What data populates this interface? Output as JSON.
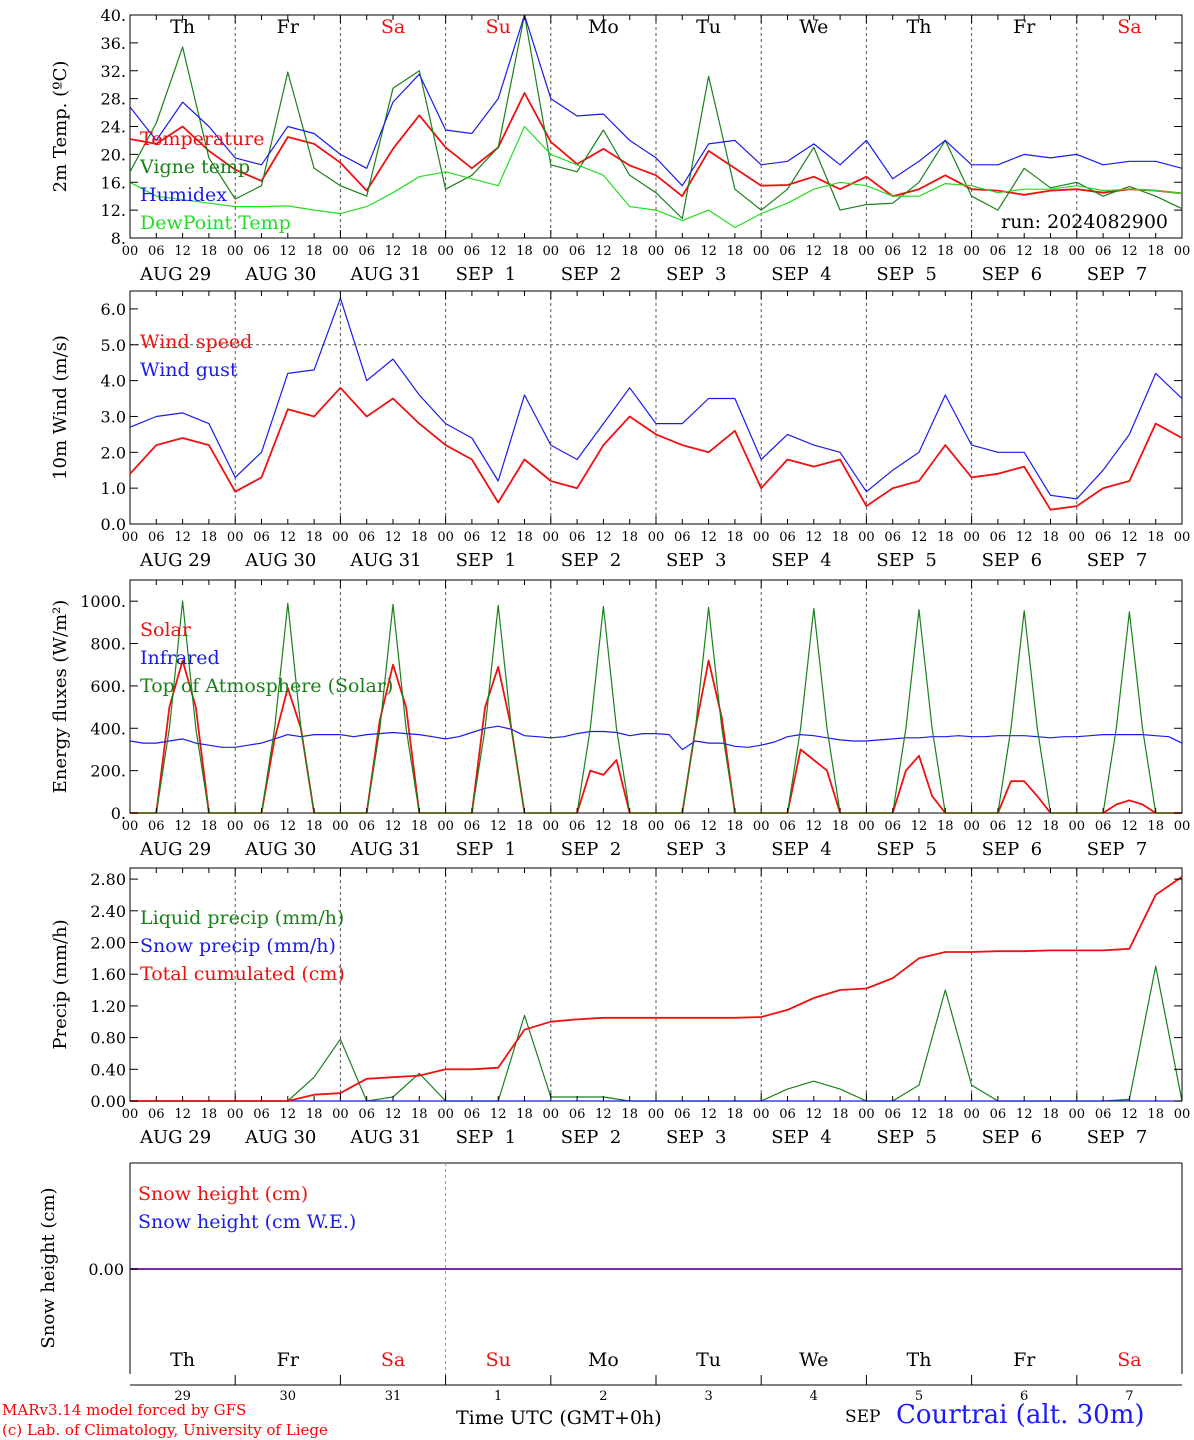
{
  "footer": {
    "model_credit": "MARv3.14 model forced by GFS",
    "lab_credit": "(c) Lab. of Climatology, University of Liege",
    "x_axis_title": "Time UTC (GMT+0h)",
    "month_label": "SEP",
    "station_label": "Courtrai (alt. 30m)"
  },
  "colors": {
    "red": "#ee1111",
    "green": "#1a801a",
    "blue": "#1a1aee",
    "lightgreen": "#22dd22",
    "purple": "#7a2a9a"
  },
  "chart_data": [
    {
      "type": "line",
      "id": "temp",
      "ylabel": "2m Temp. (ºC)",
      "ylim": [
        8,
        40
      ],
      "yticks": [
        8,
        12,
        16,
        20,
        24,
        28,
        32,
        36,
        40
      ],
      "ytick_labels": [
        "8.",
        "12.",
        "16.",
        "20.",
        "24.",
        "28.",
        "32.",
        "36.",
        "40."
      ],
      "weekday_labels": [
        "Th",
        "Fr",
        "Sa",
        "Su",
        "Mo",
        "Tu",
        "We",
        "Th",
        "Fr",
        "Sa"
      ],
      "run_label": "run: 2024082900",
      "x_hours": [
        0,
        6,
        12,
        18,
        24,
        30,
        36,
        42,
        48,
        54,
        60,
        66,
        72,
        78,
        84,
        90,
        96,
        102,
        108,
        114,
        120,
        126,
        132,
        138,
        144,
        150,
        156,
        162,
        168,
        174,
        180,
        186,
        192,
        198,
        204,
        210,
        216,
        222,
        228,
        234,
        240
      ],
      "series": [
        {
          "name": "Temperature",
          "color": "red",
          "values": [
            22.2,
            21.5,
            24.0,
            20.5,
            17.8,
            16.2,
            22.5,
            21.5,
            18.8,
            14.8,
            20.8,
            25.6,
            21.0,
            18.0,
            21.0,
            28.8,
            21.8,
            18.6,
            20.8,
            18.4,
            17.0,
            14.0,
            20.5,
            18.0,
            15.5,
            15.6,
            16.8,
            15.0,
            16.8,
            14.0,
            15.0,
            17.0,
            15.0,
            14.8,
            14.2,
            14.8,
            15.0,
            14.5,
            15.0,
            14.8,
            14.4
          ]
        },
        {
          "name": "Vigne temp",
          "color": "green",
          "values": [
            17.5,
            24.5,
            35.4,
            19.5,
            13.6,
            15.5,
            31.8,
            18.0,
            15.5,
            14.0,
            29.5,
            32.0,
            15.0,
            17.0,
            21.0,
            40.0,
            18.5,
            17.5,
            23.5,
            17.0,
            14.5,
            10.8,
            31.2,
            15.0,
            12.0,
            15.0,
            21.0,
            12.0,
            12.8,
            13.0,
            16.0,
            22.0,
            14.0,
            12.0,
            18.0,
            15.2,
            16.0,
            14.0,
            15.4,
            14.0,
            12.2
          ]
        },
        {
          "name": "Humidex",
          "color": "blue",
          "values": [
            26.8,
            22.0,
            27.5,
            24.0,
            19.5,
            18.5,
            24.0,
            23.0,
            20.0,
            18.0,
            27.5,
            31.5,
            23.5,
            23.0,
            28.0,
            40.0,
            28.0,
            25.5,
            25.8,
            22.0,
            19.5,
            15.5,
            21.5,
            22.0,
            18.5,
            19.0,
            21.5,
            18.5,
            22.0,
            16.5,
            19.0,
            22.0,
            18.5,
            18.5,
            20.0,
            19.5,
            20.0,
            18.5,
            19.0,
            19.0,
            18.0
          ]
        },
        {
          "name": "DewPoint Temp",
          "color": "lightgreen",
          "values": [
            16.0,
            14.0,
            13.5,
            13.0,
            12.5,
            12.5,
            12.6,
            12.0,
            11.5,
            12.5,
            14.5,
            16.8,
            17.5,
            16.5,
            15.5,
            24.0,
            20.0,
            18.5,
            17.0,
            12.5,
            12.0,
            10.5,
            12.0,
            9.5,
            11.5,
            13.0,
            15.0,
            16.0,
            15.5,
            14.0,
            14.0,
            15.8,
            15.5,
            14.5,
            15.0,
            15.0,
            15.5,
            14.8,
            15.0,
            14.8,
            14.4
          ]
        }
      ]
    },
    {
      "type": "line",
      "id": "wind",
      "ylabel": "10m Wind (m/s)",
      "ylim": [
        0,
        6.5
      ],
      "yticks": [
        0,
        1,
        2,
        3,
        4,
        5,
        6
      ],
      "ytick_labels": [
        "0.0",
        "1.0",
        "2.0",
        "3.0",
        "4.0",
        "5.0",
        "6.0"
      ],
      "reference_line": 5.0,
      "x_hours": [
        0,
        6,
        12,
        18,
        24,
        30,
        36,
        42,
        48,
        54,
        60,
        66,
        72,
        78,
        84,
        90,
        96,
        102,
        108,
        114,
        120,
        126,
        132,
        138,
        144,
        150,
        156,
        162,
        168,
        174,
        180,
        186,
        192,
        198,
        204,
        210,
        216,
        222,
        228,
        234,
        240
      ],
      "series": [
        {
          "name": "Wind speed",
          "color": "red",
          "values": [
            1.4,
            2.2,
            2.4,
            2.2,
            0.9,
            1.3,
            3.2,
            3.0,
            3.8,
            3.0,
            3.5,
            2.8,
            2.2,
            1.8,
            0.6,
            1.8,
            1.2,
            1.0,
            2.2,
            3.0,
            2.5,
            2.2,
            2.0,
            2.6,
            1.0,
            1.8,
            1.6,
            1.8,
            0.5,
            1.0,
            1.2,
            2.2,
            1.3,
            1.4,
            1.6,
            0.4,
            0.5,
            1.0,
            1.2,
            2.8,
            2.4
          ]
        },
        {
          "name": "Wind gust",
          "color": "blue",
          "values": [
            2.7,
            3.0,
            3.1,
            2.8,
            1.3,
            2.0,
            4.2,
            4.3,
            6.3,
            4.0,
            4.6,
            3.6,
            2.8,
            2.4,
            1.2,
            3.6,
            2.2,
            1.8,
            2.8,
            3.8,
            2.8,
            2.8,
            3.5,
            3.5,
            1.8,
            2.5,
            2.2,
            2.0,
            0.9,
            1.5,
            2.0,
            3.6,
            2.2,
            2.0,
            2.0,
            0.8,
            0.7,
            1.5,
            2.5,
            4.2,
            3.5
          ]
        }
      ]
    },
    {
      "type": "line",
      "id": "energy",
      "ylabel": "Energy fluxes (W/m²)",
      "ylim": [
        0,
        1100
      ],
      "yticks": [
        0,
        200,
        400,
        600,
        800,
        1000
      ],
      "ytick_labels": [
        "0.",
        "200.",
        "400.",
        "600.",
        "800.",
        "1000."
      ],
      "x_hours": [
        0,
        3,
        6,
        9,
        12,
        15,
        18,
        21,
        24,
        27,
        30,
        33,
        36,
        39,
        42,
        45,
        48,
        51,
        54,
        57,
        60,
        63,
        66,
        69,
        72,
        75,
        78,
        81,
        84,
        87,
        90,
        93,
        96,
        99,
        102,
        105,
        108,
        111,
        114,
        117,
        120,
        123,
        126,
        129,
        132,
        135,
        138,
        141,
        144,
        147,
        150,
        153,
        156,
        159,
        162,
        165,
        168,
        171,
        174,
        177,
        180,
        183,
        186,
        189,
        192,
        195,
        198,
        201,
        204,
        207,
        210,
        213,
        216,
        219,
        222,
        225,
        228,
        231,
        234,
        237,
        240
      ],
      "series": [
        {
          "name": "Solar",
          "color": "red",
          "values": [
            0,
            0,
            0,
            500,
            720,
            500,
            0,
            0,
            0,
            0,
            0,
            350,
            590,
            400,
            0,
            0,
            0,
            0,
            0,
            440,
            700,
            500,
            0,
            0,
            0,
            0,
            0,
            500,
            690,
            400,
            0,
            0,
            0,
            0,
            0,
            200,
            180,
            250,
            0,
            0,
            0,
            0,
            0,
            400,
            720,
            450,
            0,
            0,
            0,
            0,
            0,
            300,
            250,
            200,
            0,
            0,
            0,
            0,
            0,
            200,
            270,
            80,
            0,
            0,
            0,
            0,
            0,
            150,
            150,
            80,
            0,
            0,
            0,
            0,
            0,
            40,
            60,
            40,
            0,
            0,
            0
          ]
        },
        {
          "name": "Infrared",
          "color": "blue",
          "values": [
            340,
            330,
            330,
            340,
            350,
            330,
            320,
            310,
            310,
            320,
            330,
            350,
            370,
            360,
            370,
            370,
            370,
            360,
            370,
            375,
            380,
            375,
            370,
            360,
            350,
            360,
            380,
            400,
            410,
            395,
            365,
            360,
            355,
            360,
            375,
            385,
            385,
            380,
            365,
            375,
            375,
            370,
            300,
            340,
            330,
            330,
            315,
            310,
            320,
            335,
            360,
            370,
            365,
            355,
            345,
            340,
            340,
            345,
            350,
            355,
            355,
            360,
            360,
            365,
            360,
            360,
            365,
            365,
            365,
            360,
            355,
            360,
            360,
            365,
            370,
            370,
            370,
            370,
            365,
            360,
            330
          ]
        },
        {
          "name": "Top of Atmosphere (Solar)",
          "color": "green",
          "values": [
            0,
            0,
            0,
            400,
            1000,
            400,
            0,
            0,
            0,
            0,
            0,
            400,
            990,
            400,
            0,
            0,
            0,
            0,
            0,
            400,
            985,
            400,
            0,
            0,
            0,
            0,
            0,
            400,
            980,
            400,
            0,
            0,
            0,
            0,
            0,
            400,
            975,
            400,
            0,
            0,
            0,
            0,
            0,
            400,
            970,
            400,
            0,
            0,
            0,
            0,
            0,
            400,
            965,
            400,
            0,
            0,
            0,
            0,
            0,
            400,
            960,
            400,
            0,
            0,
            0,
            0,
            0,
            400,
            955,
            400,
            0,
            0,
            0,
            0,
            0,
            400,
            950,
            400,
            0,
            0,
            0
          ]
        }
      ]
    },
    {
      "type": "line",
      "id": "precip",
      "ylabel": "Precip (mm/h)",
      "ylim": [
        0,
        2.94
      ],
      "yticks": [
        0,
        0.4,
        0.8,
        1.2,
        1.6,
        2.0,
        2.4,
        2.8
      ],
      "ytick_labels": [
        "0.00",
        "0.40",
        "0.80",
        "1.20",
        "1.60",
        "2.00",
        "2.40",
        "2.80"
      ],
      "x_hours": [
        0,
        6,
        12,
        18,
        24,
        30,
        36,
        42,
        48,
        54,
        60,
        66,
        72,
        78,
        84,
        90,
        96,
        102,
        108,
        114,
        120,
        126,
        132,
        138,
        144,
        150,
        156,
        162,
        168,
        174,
        180,
        186,
        192,
        198,
        204,
        210,
        216,
        222,
        228,
        234,
        240
      ],
      "series": [
        {
          "name": "Liquid precip (mm/h)",
          "color": "green",
          "values": [
            0,
            0,
            0,
            0,
            0,
            0,
            0,
            0.3,
            0.78,
            0,
            0.05,
            0.35,
            0,
            0,
            0,
            1.08,
            0.05,
            0.05,
            0.05,
            0,
            0,
            0,
            0,
            0,
            0,
            0.15,
            0.25,
            0.15,
            0,
            0,
            0.2,
            1.4,
            0.2,
            0,
            0,
            0,
            0,
            0,
            0.02,
            1.7,
            0
          ]
        },
        {
          "name": "Snow precip (mm/h)",
          "color": "blue",
          "values": [
            0,
            0,
            0,
            0,
            0,
            0,
            0,
            0,
            0,
            0,
            0,
            0,
            0,
            0,
            0,
            0,
            0,
            0,
            0,
            0,
            0,
            0,
            0,
            0,
            0,
            0,
            0,
            0,
            0,
            0,
            0,
            0,
            0,
            0,
            0,
            0,
            0,
            0,
            0,
            0,
            0
          ]
        },
        {
          "name": "Total cumulated (cm)",
          "color": "red",
          "values": [
            0,
            0,
            0,
            0,
            0,
            0,
            0,
            0.08,
            0.1,
            0.28,
            0.3,
            0.32,
            0.4,
            0.4,
            0.42,
            0.9,
            1.0,
            1.03,
            1.05,
            1.05,
            1.05,
            1.05,
            1.05,
            1.05,
            1.06,
            1.15,
            1.3,
            1.4,
            1.42,
            1.55,
            1.8,
            1.88,
            1.88,
            1.89,
            1.89,
            1.9,
            1.9,
            1.9,
            1.92,
            2.6,
            2.83
          ]
        }
      ]
    },
    {
      "type": "line",
      "id": "snow",
      "ylabel": "Snow height (cm)",
      "ytick_labels": [
        "0.00"
      ],
      "weekday_labels": [
        "Th",
        "Fr",
        "Sa",
        "Su",
        "Mo",
        "Tu",
        "We",
        "Th",
        "Fr",
        "Sa"
      ],
      "day_numbers": [
        "29",
        "30",
        "31",
        "1",
        "2",
        "3",
        "4",
        "5",
        "6",
        "7"
      ],
      "x_hours": [
        0,
        240
      ],
      "series": [
        {
          "name": "Snow height (cm)",
          "color": "red",
          "values": [
            0,
            0
          ]
        },
        {
          "name": "Snow height (cm W.E.)",
          "color": "blue",
          "values": [
            0,
            0
          ]
        }
      ]
    }
  ],
  "x_axis": {
    "hour_ticks": [
      "00",
      "06",
      "12",
      "18"
    ],
    "date_labels": [
      "AUG 29",
      "AUG 30",
      "AUG 31",
      "SEP  1",
      "SEP  2",
      "SEP  3",
      "SEP  4",
      "SEP  5",
      "SEP  6",
      "SEP  7"
    ]
  }
}
